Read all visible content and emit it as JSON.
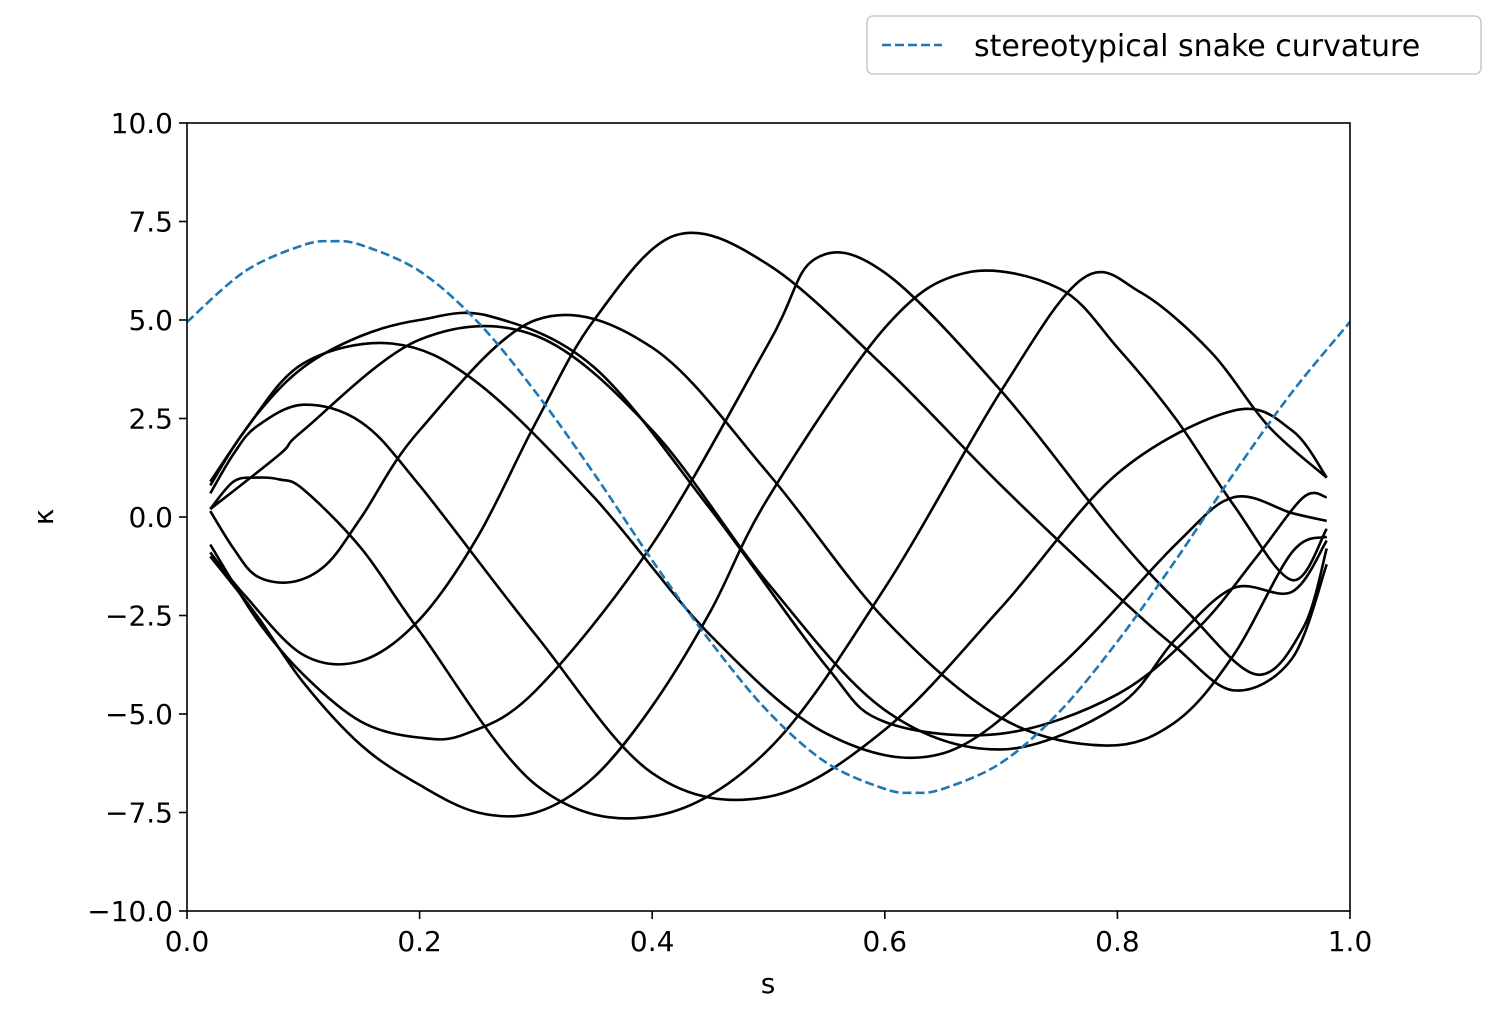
{
  "chart_data": {
    "type": "line",
    "xlabel": "s",
    "ylabel": "κ",
    "xlim": [
      0.0,
      1.0
    ],
    "ylim": [
      -10.0,
      10.0
    ],
    "x_ticks": [
      0.0,
      0.2,
      0.4,
      0.6,
      0.8,
      1.0
    ],
    "x_tick_labels": [
      "0.0",
      "0.2",
      "0.4",
      "0.6",
      "0.8",
      "1.0"
    ],
    "y_ticks": [
      10.0,
      7.5,
      5.0,
      2.5,
      0.0,
      -2.5,
      -5.0,
      -7.5,
      -10.0
    ],
    "y_tick_labels": [
      "10.0",
      "7.5",
      "5.0",
      "2.5",
      "0.0",
      "−2.5",
      "−5.0",
      "−7.5",
      "−10.0"
    ],
    "grid": false,
    "legend": {
      "placement": "top-right, outside plot",
      "entries": [
        {
          "label": "stereotypical snake curvature",
          "color": "#1f77b4",
          "style": "dashed"
        }
      ]
    },
    "reference_series": {
      "label": "stereotypical snake curvature",
      "color": "#1f77b4",
      "style": "dashed",
      "x": [
        0.0,
        0.05,
        0.1,
        0.125,
        0.15,
        0.2,
        0.25,
        0.3,
        0.35,
        0.4,
        0.45,
        0.5,
        0.55,
        0.6,
        0.625,
        0.65,
        0.7,
        0.75,
        0.8,
        0.85,
        0.9,
        0.95,
        1.0
      ],
      "y": [
        4.95,
        6.24,
        6.9,
        7.0,
        6.9,
        6.24,
        4.95,
        3.16,
        1.1,
        -1.1,
        -3.16,
        -4.95,
        -6.24,
        -6.9,
        -7.0,
        -6.9,
        -6.24,
        -4.95,
        -3.16,
        -1.1,
        1.1,
        3.16,
        4.95
      ]
    },
    "snapshot_series_color": "#000000",
    "series": [
      {
        "x": [
          0.02,
          0.05,
          0.1,
          0.177,
          0.25,
          0.35,
          0.45,
          0.55,
          0.65,
          0.75,
          0.85,
          0.9,
          0.95,
          0.98
        ],
        "y": [
          0.8,
          2.2,
          3.9,
          4.4,
          3.4,
          0.5,
          -3.0,
          -5.5,
          -6.0,
          -3.8,
          -0.7,
          0.5,
          0.1,
          -0.1
        ]
      },
      {
        "x": [
          0.02,
          0.04,
          0.06,
          0.1,
          0.15,
          0.2,
          0.3,
          0.4,
          0.5,
          0.6,
          0.7,
          0.8,
          0.9,
          0.95,
          0.98
        ],
        "y": [
          0.6,
          1.6,
          2.3,
          2.85,
          2.4,
          0.8,
          -3.0,
          -6.5,
          -7.1,
          -5.4,
          -2.3,
          1.1,
          2.7,
          2.2,
          1.0
        ]
      },
      {
        "x": [
          0.02,
          0.06,
          0.1,
          0.15,
          0.2,
          0.26,
          0.35,
          0.45,
          0.55,
          0.6,
          0.7,
          0.8,
          0.87,
          0.92,
          0.96,
          0.98
        ],
        "y": [
          0.9,
          2.6,
          3.8,
          4.6,
          5.0,
          5.1,
          3.8,
          0.2,
          -3.8,
          -5.2,
          -5.5,
          -4.5,
          -2.8,
          -1.0,
          0.5,
          0.5
        ]
      },
      {
        "x": [
          0.02,
          0.05,
          0.1,
          0.15,
          0.2,
          0.25,
          0.3,
          0.35,
          0.42,
          0.5,
          0.6,
          0.7,
          0.8,
          0.85,
          0.9,
          0.95,
          0.98
        ],
        "y": [
          -0.9,
          -2.0,
          -3.5,
          -3.65,
          -2.6,
          -0.5,
          2.4,
          5.0,
          7.15,
          6.4,
          3.8,
          0.8,
          -2.0,
          -3.3,
          -4.4,
          -3.6,
          -1.2
        ]
      },
      {
        "x": [
          0.02,
          0.06,
          0.1,
          0.15,
          0.2,
          0.24,
          0.3,
          0.4,
          0.5,
          0.54,
          0.6,
          0.7,
          0.8,
          0.86,
          0.92,
          0.96,
          0.98
        ],
        "y": [
          -0.7,
          -2.6,
          -4.0,
          -5.2,
          -5.6,
          -5.5,
          -4.4,
          -0.7,
          4.4,
          6.55,
          6.2,
          3.2,
          -0.5,
          -2.4,
          -4.0,
          -2.8,
          -0.8
        ]
      },
      {
        "x": [
          0.02,
          0.06,
          0.1,
          0.15,
          0.2,
          0.25,
          0.3,
          0.35,
          0.4,
          0.45,
          0.5,
          0.6,
          0.67,
          0.75,
          0.8,
          0.85,
          0.9,
          0.95,
          0.98
        ],
        "y": [
          -1.0,
          -2.5,
          -4.2,
          -5.8,
          -6.8,
          -7.5,
          -7.5,
          -6.6,
          -4.8,
          -2.4,
          0.5,
          4.8,
          6.2,
          5.8,
          4.3,
          2.5,
          0.3,
          -1.6,
          -0.3
        ]
      },
      {
        "x": [
          0.02,
          0.08,
          0.1,
          0.2,
          0.3,
          0.4,
          0.5,
          0.6,
          0.7,
          0.8,
          0.85,
          0.9,
          0.95,
          0.98
        ],
        "y": [
          0.2,
          1.6,
          2.2,
          4.5,
          4.6,
          2.2,
          -1.7,
          -4.9,
          -5.9,
          -4.8,
          -3.1,
          -1.8,
          -1.9,
          -0.6
        ]
      },
      {
        "x": [
          0.02,
          0.04,
          0.06,
          0.08,
          0.1,
          0.15,
          0.2,
          0.3,
          0.4,
          0.5,
          0.6,
          0.7,
          0.77,
          0.82,
          0.88,
          0.93,
          0.98
        ],
        "y": [
          0.2,
          0.9,
          1.0,
          0.95,
          0.7,
          -0.8,
          -2.9,
          -6.8,
          -7.6,
          -5.9,
          -1.8,
          3.2,
          6.05,
          5.7,
          4.2,
          2.3,
          1.0
        ]
      },
      {
        "x": [
          0.02,
          0.04,
          0.06,
          0.09,
          0.12,
          0.15,
          0.2,
          0.3,
          0.4,
          0.5,
          0.6,
          0.7,
          0.79,
          0.85,
          0.9,
          0.95,
          0.98
        ],
        "y": [
          0.15,
          -0.8,
          -1.5,
          -1.65,
          -1.2,
          0.0,
          2.2,
          5.0,
          4.3,
          1.1,
          -2.6,
          -5.1,
          -5.8,
          -5.2,
          -3.5,
          -0.9,
          -0.5
        ]
      }
    ]
  }
}
